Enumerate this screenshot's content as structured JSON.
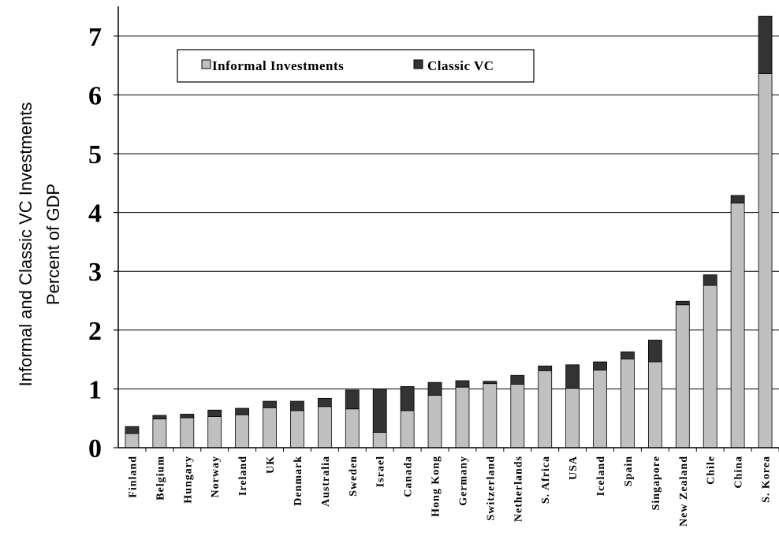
{
  "chart_data": {
    "type": "bar",
    "stacked": true,
    "title": "",
    "ylabel_lines": [
      "Informal and Classic VC Investments",
      "Percent of GDP"
    ],
    "xlabel": "",
    "ylim": [
      0,
      7.45
    ],
    "yticks": [
      0,
      1,
      2,
      3,
      4,
      5,
      6,
      7
    ],
    "grid": true,
    "legend_position": "top-left",
    "categories": [
      "Finland",
      "Belgium",
      "Hungary",
      "Norway",
      "Ireland",
      "UK",
      "Denmark",
      "Australia",
      "Sweden",
      "Israel",
      "Canada",
      "Hong Kong",
      "Germany",
      "Switzerland",
      "Netherlands",
      "S. Africa",
      "USA",
      "Iceland",
      "Spain",
      "Singapore",
      "New Zealand",
      "Chile",
      "China",
      "S. Korea"
    ],
    "series": [
      {
        "name": "Informal Investments",
        "color": "#c0c0c0",
        "values": [
          0.24,
          0.49,
          0.51,
          0.53,
          0.56,
          0.68,
          0.63,
          0.7,
          0.66,
          0.26,
          0.63,
          0.89,
          1.03,
          1.09,
          1.08,
          1.31,
          1.01,
          1.32,
          1.51,
          1.46,
          2.43,
          2.76,
          4.16,
          6.36
        ]
      },
      {
        "name": "Classic VC",
        "color": "#333333",
        "values": [
          0.12,
          0.06,
          0.06,
          0.11,
          0.11,
          0.11,
          0.16,
          0.14,
          0.32,
          0.74,
          0.41,
          0.22,
          0.11,
          0.04,
          0.15,
          0.08,
          0.4,
          0.14,
          0.12,
          0.37,
          0.06,
          0.18,
          0.13,
          0.98
        ]
      }
    ]
  }
}
